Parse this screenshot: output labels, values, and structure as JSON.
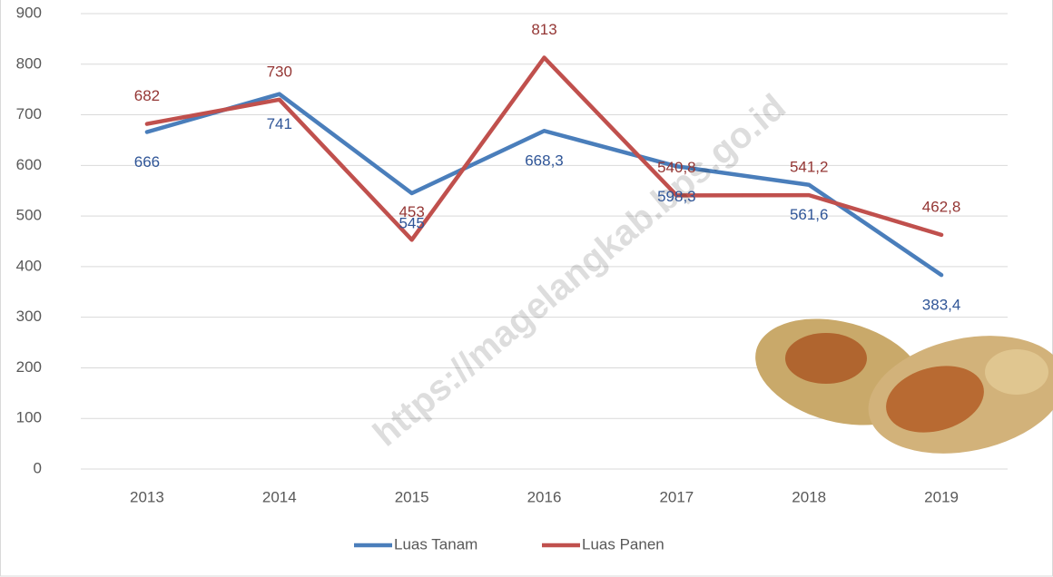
{
  "chart_data": {
    "type": "line",
    "categories": [
      "2013",
      "2014",
      "2015",
      "2016",
      "2017",
      "2018",
      "2019"
    ],
    "series": [
      {
        "name": "Luas Tanam",
        "color": "#4a7ebb",
        "values": [
          666,
          741,
          545,
          668.3,
          598.3,
          561.6,
          383.4
        ],
        "value_labels": [
          "666",
          "741",
          "545",
          "668,3",
          "598,3",
          "561,6",
          "383,4"
        ]
      },
      {
        "name": "Luas Panen",
        "color": "#c0504d",
        "values": [
          682,
          730,
          453,
          813,
          540.8,
          541.2,
          462.8
        ],
        "value_labels": [
          "682",
          "730",
          "453",
          "813",
          "540,8",
          "541,2",
          "462,8"
        ]
      }
    ],
    "ylim": [
      0,
      900
    ],
    "yticks": [
      0,
      100,
      200,
      300,
      400,
      500,
      600,
      700,
      800,
      900
    ],
    "grid": true,
    "legend": "bottom",
    "watermark": "https://magelangkab.bps.go.id"
  }
}
